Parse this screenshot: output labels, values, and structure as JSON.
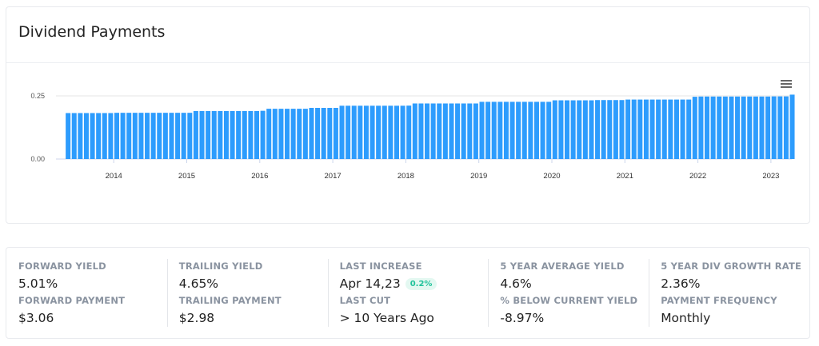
{
  "header": {
    "title": "Dividend Payments"
  },
  "chart_data": {
    "type": "bar",
    "title": "",
    "xlabel": "",
    "ylabel": "",
    "bar_color": "#2d9cfd",
    "ylim": [
      0,
      0.25
    ],
    "yticks": [
      "0.00",
      "0.25"
    ],
    "xticks": [
      "2014",
      "2015",
      "2016",
      "2017",
      "2018",
      "2019",
      "2020",
      "2021",
      "2022",
      "2023"
    ],
    "grid": true,
    "x": [
      "2013-05",
      "2013-06",
      "2013-07",
      "2013-08",
      "2013-09",
      "2013-10",
      "2013-11",
      "2013-12",
      "2014-01",
      "2014-02",
      "2014-03",
      "2014-04",
      "2014-05",
      "2014-06",
      "2014-07",
      "2014-08",
      "2014-09",
      "2014-10",
      "2014-11",
      "2014-12",
      "2015-01",
      "2015-02",
      "2015-03",
      "2015-04",
      "2015-05",
      "2015-06",
      "2015-07",
      "2015-08",
      "2015-09",
      "2015-10",
      "2015-11",
      "2015-12",
      "2016-01",
      "2016-02",
      "2016-03",
      "2016-04",
      "2016-05",
      "2016-06",
      "2016-07",
      "2016-08",
      "2016-09",
      "2016-10",
      "2016-11",
      "2016-12",
      "2017-01",
      "2017-02",
      "2017-03",
      "2017-04",
      "2017-05",
      "2017-06",
      "2017-07",
      "2017-08",
      "2017-09",
      "2017-10",
      "2017-11",
      "2017-12",
      "2018-01",
      "2018-02",
      "2018-03",
      "2018-04",
      "2018-05",
      "2018-06",
      "2018-07",
      "2018-08",
      "2018-09",
      "2018-10",
      "2018-11",
      "2018-12",
      "2019-01",
      "2019-02",
      "2019-03",
      "2019-04",
      "2019-05",
      "2019-06",
      "2019-07",
      "2019-08",
      "2019-09",
      "2019-10",
      "2019-11",
      "2019-12",
      "2020-01",
      "2020-02",
      "2020-03",
      "2020-04",
      "2020-05",
      "2020-06",
      "2020-07",
      "2020-08",
      "2020-09",
      "2020-10",
      "2020-11",
      "2020-12",
      "2021-01",
      "2021-02",
      "2021-03",
      "2021-04",
      "2021-05",
      "2021-06",
      "2021-07",
      "2021-08",
      "2021-09",
      "2021-10",
      "2021-11",
      "2021-12",
      "2022-01",
      "2022-02",
      "2022-03",
      "2022-04",
      "2022-05",
      "2022-06",
      "2022-07",
      "2022-08",
      "2022-09",
      "2022-10",
      "2022-11",
      "2022-12",
      "2023-01",
      "2023-02",
      "2023-03",
      "2023-04"
    ],
    "values": [
      0.182,
      0.182,
      0.182,
      0.182,
      0.182,
      0.182,
      0.182,
      0.182,
      0.183,
      0.183,
      0.183,
      0.183,
      0.183,
      0.183,
      0.183,
      0.183,
      0.183,
      0.183,
      0.183,
      0.183,
      0.183,
      0.19,
      0.19,
      0.19,
      0.19,
      0.19,
      0.19,
      0.19,
      0.19,
      0.19,
      0.19,
      0.19,
      0.191,
      0.199,
      0.199,
      0.199,
      0.199,
      0.199,
      0.199,
      0.199,
      0.2025,
      0.2025,
      0.2025,
      0.2025,
      0.2025,
      0.211,
      0.211,
      0.211,
      0.211,
      0.211,
      0.211,
      0.211,
      0.211,
      0.211,
      0.211,
      0.211,
      0.2115,
      0.22,
      0.22,
      0.22,
      0.22,
      0.22,
      0.22,
      0.22,
      0.22,
      0.22,
      0.22,
      0.22,
      0.2265,
      0.2265,
      0.2265,
      0.2265,
      0.2265,
      0.2265,
      0.2265,
      0.2265,
      0.2265,
      0.2265,
      0.2265,
      0.2265,
      0.2325,
      0.2325,
      0.2325,
      0.2325,
      0.2325,
      0.2325,
      0.2325,
      0.2335,
      0.2335,
      0.2335,
      0.2335,
      0.2335,
      0.2355,
      0.2355,
      0.2355,
      0.2355,
      0.2355,
      0.2355,
      0.2355,
      0.2355,
      0.2355,
      0.2355,
      0.2355,
      0.2465,
      0.2475,
      0.2475,
      0.2475,
      0.2475,
      0.2475,
      0.2475,
      0.2475,
      0.2475,
      0.2475,
      0.2475,
      0.2475,
      0.2475,
      0.248,
      0.248,
      0.248,
      0.255
    ]
  },
  "stats": [
    {
      "label1": "FORWARD YIELD",
      "value1": "5.01%",
      "label2": "FORWARD PAYMENT",
      "value2": "$3.06"
    },
    {
      "label1": "TRAILING YIELD",
      "value1": "4.65%",
      "label2": "TRAILING PAYMENT",
      "value2": "$2.98"
    },
    {
      "label1": "LAST INCREASE",
      "value1": "Apr 14,23",
      "badge": "0.2%",
      "label2": "LAST CUT",
      "value2": "> 10 Years Ago"
    },
    {
      "label1": "5 YEAR AVERAGE YIELD",
      "value1": "4.6%",
      "label2": "% BELOW CURRENT YIELD",
      "value2": "-8.97%"
    },
    {
      "label1": "5 YEAR DIV GROWTH RATE",
      "value1": "2.36%",
      "label2": "PAYMENT FREQUENCY",
      "value2": "Monthly"
    }
  ],
  "badge_color": "#1fc29a",
  "icons": {
    "chart_menu": "hamburger-menu-icon"
  }
}
